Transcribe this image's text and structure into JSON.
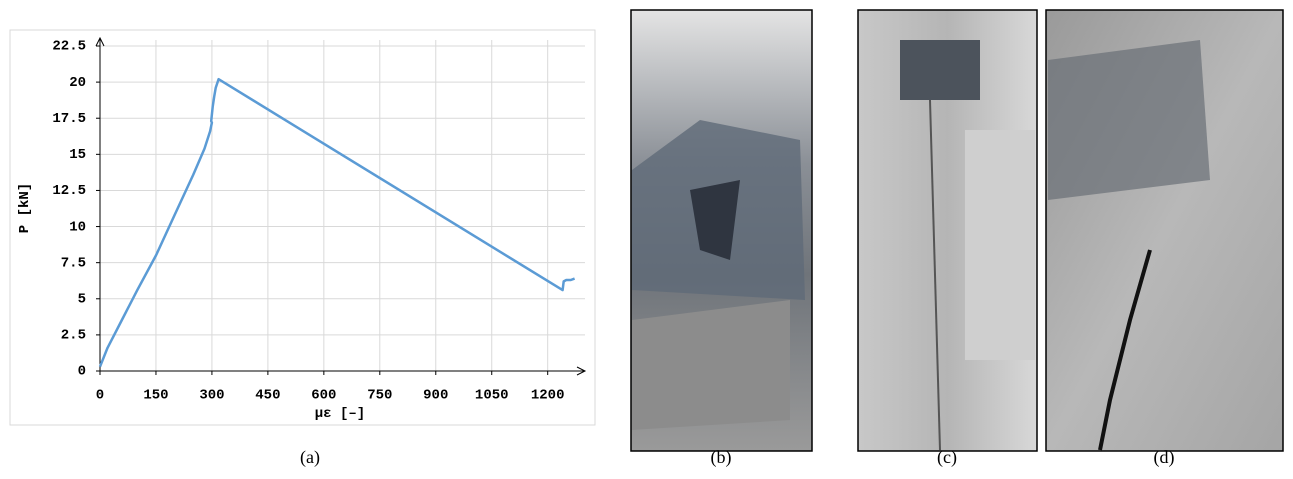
{
  "chart_data": {
    "type": "line",
    "xlabel": "με [–]",
    "ylabel": "P [kN]",
    "x": [
      0,
      20,
      60,
      100,
      150,
      200,
      250,
      280,
      295,
      300,
      298,
      302,
      306,
      310,
      318,
      1240,
      1243,
      1250,
      1262,
      1272
    ],
    "values": [
      0.3,
      1.6,
      3.6,
      5.6,
      8,
      10.8,
      13.6,
      15.4,
      16.6,
      17.2,
      17.3,
      18.3,
      19,
      19.6,
      20.2,
      5.6,
      6.2,
      6.3,
      6.3,
      6.4
    ],
    "color": "#5b9bd5",
    "xlim": [
      0,
      1300
    ],
    "ylim": [
      0,
      22.5
    ],
    "xticks": [
      0,
      150,
      300,
      450,
      600,
      750,
      900,
      1050,
      1200
    ],
    "yticks": [
      0,
      2.5,
      5,
      7.5,
      10,
      12.5,
      15,
      17.5,
      20,
      22.5
    ],
    "grid": true
  },
  "panel_labels": [
    "(a)",
    "(b)",
    "(c)",
    "(d)"
  ]
}
